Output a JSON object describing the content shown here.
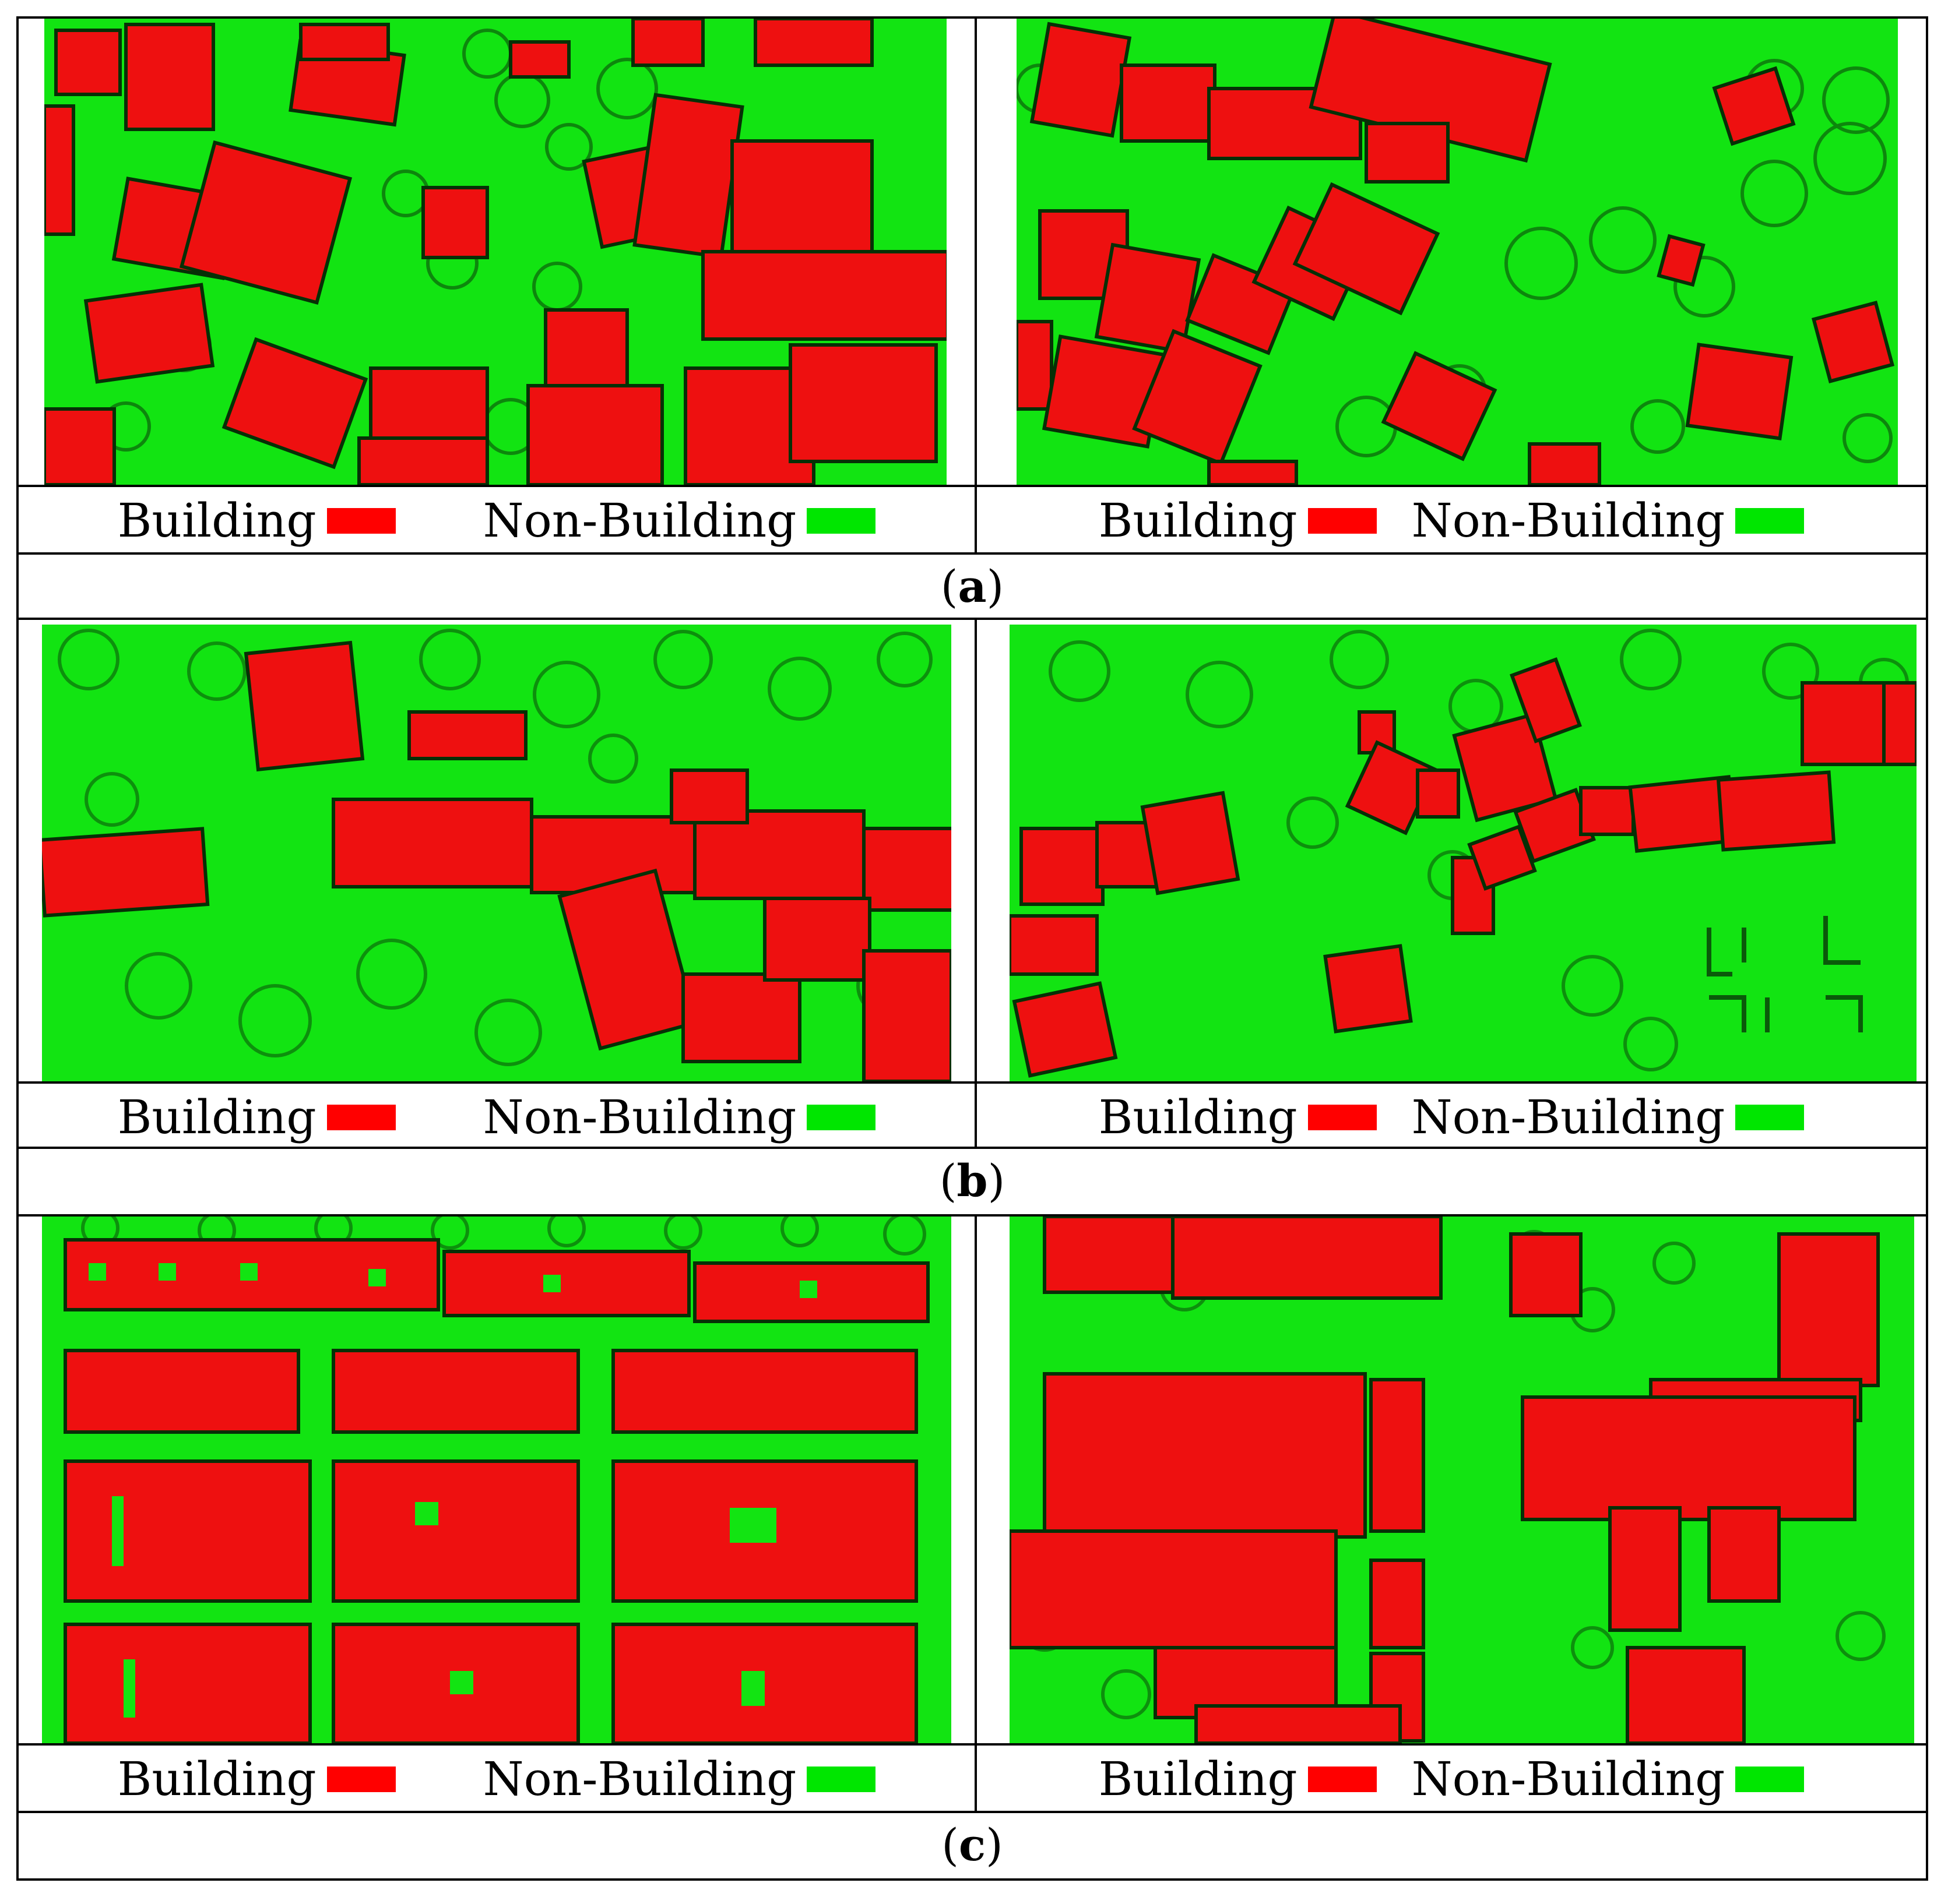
{
  "legend": {
    "building_label": "Building",
    "non_building_label": "Non-Building",
    "building_color": "#ff0000",
    "non_building_color": "#00e600"
  },
  "rows": [
    {
      "label": "a"
    },
    {
      "label": "b"
    },
    {
      "label": "c"
    }
  ]
}
